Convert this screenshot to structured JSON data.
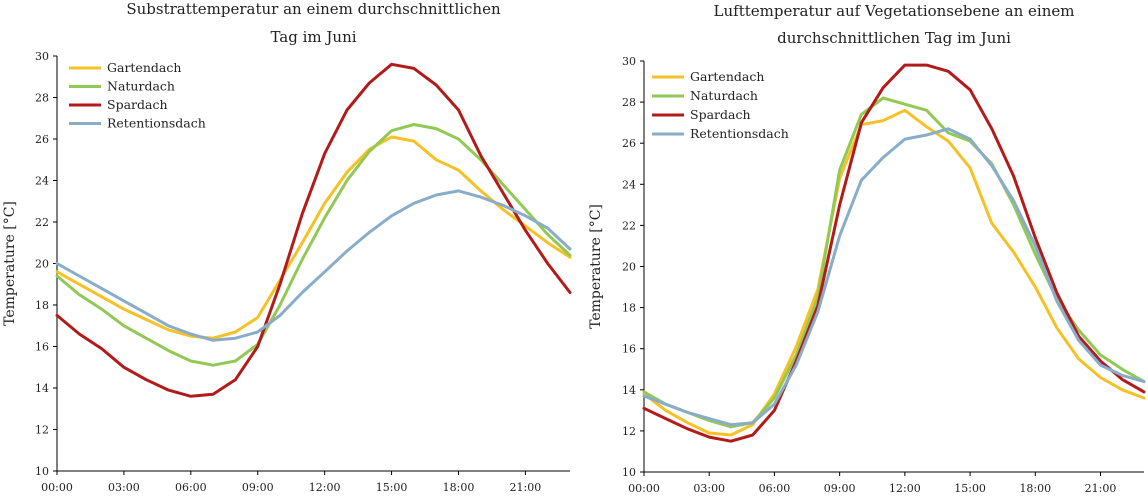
{
  "chart_data": [
    {
      "type": "line",
      "title": [
        "Substrattemperatur an einem durchschnittlichen",
        "Tag im Juni"
      ],
      "xlabel": "",
      "ylabel": "Temperature [°C]",
      "x": [
        0,
        1,
        2,
        3,
        4,
        5,
        6,
        7,
        8,
        9,
        10,
        11,
        12,
        13,
        14,
        15,
        16,
        17,
        18,
        19,
        20,
        21,
        22,
        23
      ],
      "xlim": [
        0,
        23
      ],
      "ylim": [
        10,
        30
      ],
      "xticks": [
        {
          "v": 0,
          "label": "00:00"
        },
        {
          "v": 3,
          "label": "03:00"
        },
        {
          "v": 6,
          "label": "06:00"
        },
        {
          "v": 9,
          "label": "09:00"
        },
        {
          "v": 12,
          "label": "12:00"
        },
        {
          "v": 15,
          "label": "15:00"
        },
        {
          "v": 18,
          "label": "18:00"
        },
        {
          "v": 21,
          "label": "21:00"
        }
      ],
      "yticks": [
        10,
        12,
        14,
        16,
        18,
        20,
        22,
        24,
        26,
        28,
        30
      ],
      "grid": false,
      "legend": "top-left",
      "series": [
        {
          "name": "Gartendach",
          "color": "#f5c125",
          "values": [
            19.6,
            19.0,
            18.4,
            17.8,
            17.3,
            16.8,
            16.5,
            16.4,
            16.7,
            17.4,
            19.2,
            21.0,
            22.9,
            24.4,
            25.5,
            26.1,
            25.9,
            25.0,
            24.5,
            23.5,
            22.6,
            21.8,
            21.0,
            20.3
          ]
        },
        {
          "name": "Naturdach",
          "color": "#92c955",
          "values": [
            19.4,
            18.5,
            17.8,
            17.0,
            16.4,
            15.8,
            15.3,
            15.1,
            15.3,
            16.1,
            18.0,
            20.2,
            22.2,
            24.0,
            25.4,
            26.4,
            26.7,
            26.5,
            26.0,
            25.0,
            23.8,
            22.6,
            21.4,
            20.4
          ]
        },
        {
          "name": "Spardach",
          "color": "#b31b1b",
          "values": [
            17.5,
            16.6,
            15.9,
            15.0,
            14.4,
            13.9,
            13.6,
            13.7,
            14.4,
            16.0,
            19.0,
            22.4,
            25.3,
            27.4,
            28.7,
            29.6,
            29.4,
            28.6,
            27.4,
            25.2,
            23.4,
            21.6,
            20.0,
            18.6
          ]
        },
        {
          "name": "Retentionsdach",
          "color": "#89acc8",
          "values": [
            20.0,
            19.4,
            18.8,
            18.2,
            17.6,
            17.0,
            16.6,
            16.3,
            16.4,
            16.7,
            17.5,
            18.6,
            19.6,
            20.6,
            21.5,
            22.3,
            22.9,
            23.3,
            23.5,
            23.2,
            22.8,
            22.3,
            21.7,
            20.7
          ]
        }
      ]
    },
    {
      "type": "line",
      "title": [
        "Lufttemperatur auf Vegetationsebene an einem",
        "durchschnittlichen Tag im Juni"
      ],
      "xlabel": "",
      "ylabel": "Temperature [°C]",
      "x": [
        0,
        1,
        2,
        3,
        4,
        5,
        6,
        7,
        8,
        9,
        10,
        11,
        12,
        13,
        14,
        15,
        16,
        17,
        18,
        19,
        20,
        21,
        22,
        23
      ],
      "xlim": [
        0,
        23
      ],
      "ylim": [
        10,
        30
      ],
      "xticks": [
        {
          "v": 0,
          "label": "00:00"
        },
        {
          "v": 3,
          "label": "03:00"
        },
        {
          "v": 6,
          "label": "06:00"
        },
        {
          "v": 9,
          "label": "09:00"
        },
        {
          "v": 12,
          "label": "12:00"
        },
        {
          "v": 15,
          "label": "15:00"
        },
        {
          "v": 18,
          "label": "18:00"
        },
        {
          "v": 21,
          "label": "21:00"
        }
      ],
      "yticks": [
        10,
        12,
        14,
        16,
        18,
        20,
        22,
        24,
        26,
        28,
        30
      ],
      "grid": false,
      "legend": "top-left",
      "series": [
        {
          "name": "Gartendach",
          "color": "#f5c125",
          "values": [
            13.8,
            13.0,
            12.4,
            11.9,
            11.8,
            12.3,
            13.8,
            16.1,
            18.9,
            24.3,
            26.9,
            27.1,
            27.6,
            26.8,
            26.1,
            24.8,
            22.1,
            20.7,
            19.0,
            17.0,
            15.5,
            14.6,
            14.0,
            13.6
          ]
        },
        {
          "name": "Naturdach",
          "color": "#92c955",
          "values": [
            13.9,
            13.3,
            12.9,
            12.5,
            12.2,
            12.4,
            13.6,
            15.7,
            18.5,
            24.7,
            27.4,
            28.2,
            27.9,
            27.6,
            26.5,
            26.1,
            25.0,
            23.0,
            20.6,
            18.4,
            16.9,
            15.7,
            15.0,
            14.4
          ]
        },
        {
          "name": "Spardach",
          "color": "#b31b1b",
          "values": [
            13.1,
            12.6,
            12.1,
            11.7,
            11.5,
            11.8,
            13.0,
            15.4,
            18.1,
            23.0,
            27.0,
            28.7,
            29.8,
            29.8,
            29.5,
            28.6,
            26.7,
            24.4,
            21.4,
            18.7,
            16.6,
            15.4,
            14.5,
            13.9
          ]
        },
        {
          "name": "Retentionsdach",
          "color": "#89acc8",
          "values": [
            13.7,
            13.3,
            12.9,
            12.6,
            12.3,
            12.4,
            13.3,
            15.2,
            17.8,
            21.5,
            24.2,
            25.3,
            26.2,
            26.4,
            26.7,
            26.2,
            24.9,
            23.2,
            21.0,
            18.3,
            16.4,
            15.2,
            14.7,
            14.4
          ]
        }
      ]
    }
  ]
}
